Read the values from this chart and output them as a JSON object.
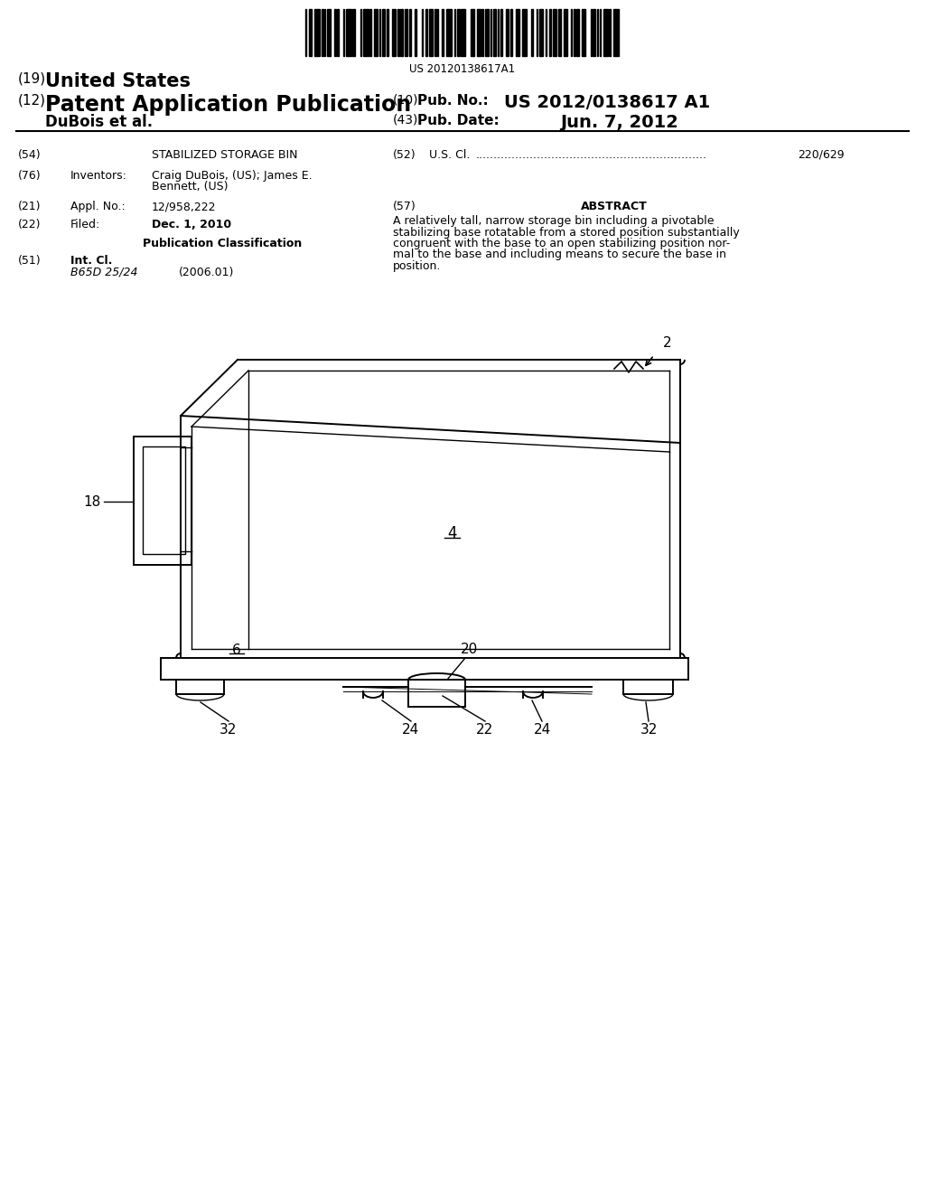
{
  "bg_color": "#ffffff",
  "barcode_text": "US 20120138617A1",
  "header_19": "(19)",
  "header_19_val": "United States",
  "header_12": "(12)",
  "header_12_val": "Patent Application Publication",
  "pub_no_num": "(10)",
  "pub_no_label": "Pub. No.:",
  "pub_no_value": "US 2012/0138617 A1",
  "author_left": "DuBois et al.",
  "pub_date_num": "(43)",
  "pub_date_label": "Pub. Date:",
  "pub_date_value": "Jun. 7, 2012",
  "f54_num": "(54)",
  "f54_val": "STABILIZED STORAGE BIN",
  "f52_num": "(52)",
  "f52_label": "U.S. Cl.",
  "f52_val": "220/629",
  "f76_num": "(76)",
  "f76_key": "Inventors:",
  "f76_line1": "Craig DuBois, (US); James E.",
  "f76_line2": "Bennett, (US)",
  "f21_num": "(21)",
  "f21_key": "Appl. No.:",
  "f21_val": "12/958,222",
  "f22_num": "(22)",
  "f22_key": "Filed:",
  "f22_val": "Dec. 1, 2010",
  "pub_class": "Publication Classification",
  "f51_num": "(51)",
  "f51_key": "Int. Cl.",
  "f51_code": "B65D 25/24",
  "f51_year": "(2006.01)",
  "f57_num": "(57)",
  "abstract_title": "ABSTRACT",
  "abstract_lines": [
    "A relatively tall, narrow storage bin including a pivotable",
    "stabilizing base rotatable from a stored position substantially",
    "congruent with the base to an open stabilizing position nor-",
    "mal to the base and including means to secure the base in",
    "position."
  ],
  "lbl_2": "2",
  "lbl_4": "4",
  "lbl_6": "6",
  "lbl_18": "18",
  "lbl_20": "20",
  "lbl_22": "22",
  "lbl_24": "24",
  "lbl_32": "32"
}
